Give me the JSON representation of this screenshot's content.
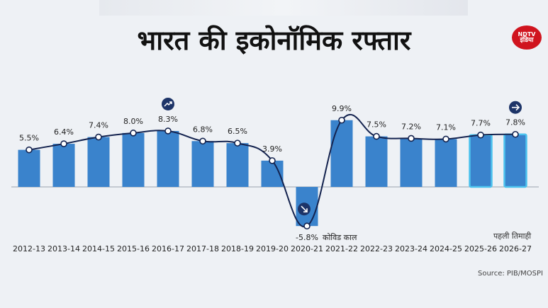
{
  "header": {
    "title": "भारत की इकोनॉमिक रफ्तार",
    "logo_line1": "NDTV",
    "logo_line2": "इंडिया"
  },
  "footer": {
    "source": "Source: PIB/MOSPI",
    "note": "पहली तिमाही"
  },
  "colors": {
    "bar": "#3a83cc",
    "bar_highlight": "#4cc3ee",
    "line": "#14234f",
    "icon": "#1d3468"
  },
  "chart_data": {
    "type": "bar",
    "title": "भारत की इकोनॉमिक रफ्तार",
    "categories": [
      "2012-13",
      "2013-14",
      "2014-15",
      "2015-16",
      "2016-17",
      "2017-18",
      "2018-19",
      "2019-20",
      "2020-21",
      "2021-22",
      "2022-23",
      "2023-24",
      "2024-25",
      "2025-26",
      "2026-27"
    ],
    "values": [
      5.5,
      6.4,
      7.4,
      8.0,
      8.3,
      6.8,
      6.5,
      3.9,
      -5.8,
      9.9,
      7.5,
      7.2,
      7.1,
      7.7,
      7.8
    ],
    "value_labels": [
      "5.5%",
      "6.4%",
      "7.4%",
      "8.0%",
      "8.3%",
      "6.8%",
      "6.5%",
      "3.9%",
      "-5.8%",
      "9.9%",
      "7.5%",
      "7.2%",
      "7.1%",
      "7.7%",
      "7.8%"
    ],
    "highlighted": [
      "2025-26",
      "2026-27"
    ],
    "overlay": "line",
    "annotation": "कोविड काल",
    "annotation_category": "2020-21",
    "icons": [
      {
        "category": "2016-17",
        "name": "trend-up-icon"
      },
      {
        "category": "2020-21",
        "name": "arrow-down-right-icon"
      },
      {
        "category": "2026-27",
        "name": "arrow-right-icon"
      }
    ],
    "xlabel": "",
    "ylabel": "",
    "ylim": [
      -5.8,
      9.9
    ],
    "grid": false,
    "legend": "none"
  }
}
